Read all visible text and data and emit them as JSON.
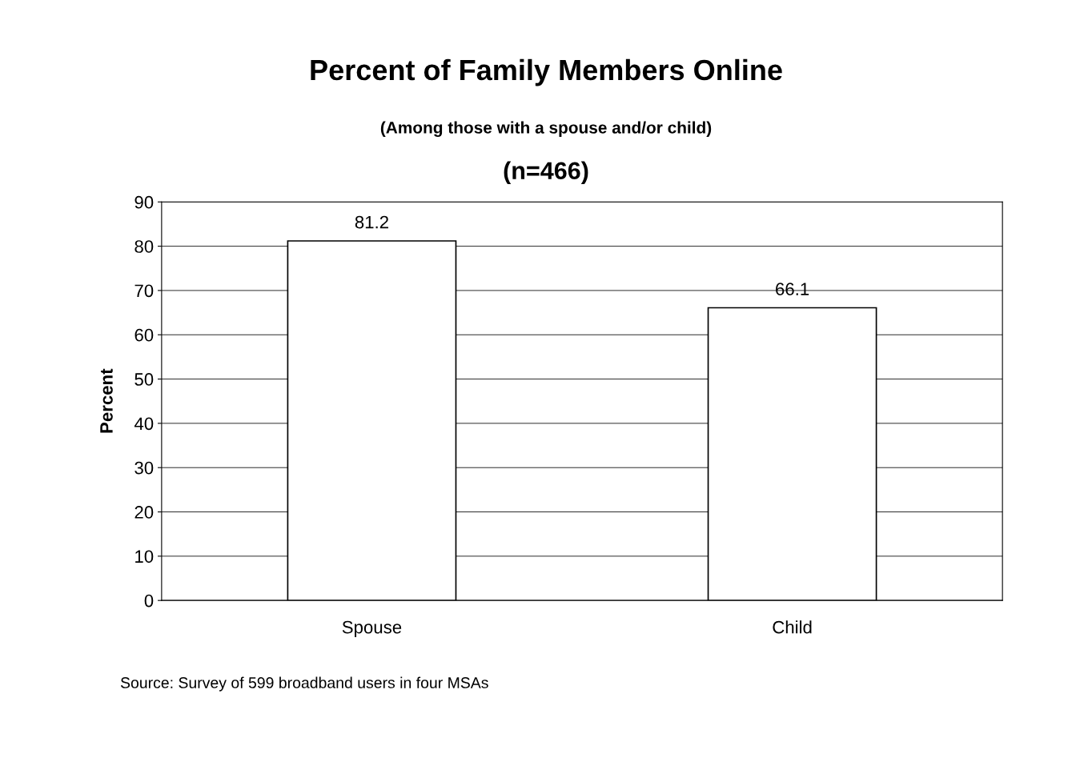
{
  "chart_data": {
    "type": "bar",
    "title": "Percent of Family Members Online",
    "subtitle": "(Among those with a spouse and/or child)\n(n=466)",
    "ylabel": "Percent",
    "categories": [
      "Spouse",
      "Child"
    ],
    "values": [
      81.2,
      66.1
    ],
    "color": "#ffffff",
    "ylim": [
      0,
      90
    ],
    "yticks": [
      0,
      10,
      20,
      30,
      40,
      50,
      60,
      70,
      80,
      90
    ],
    "grid": "y",
    "data_labels": true,
    "annotations": [
      "Source: Survey of 599 broadband users in four MSAs"
    ]
  }
}
